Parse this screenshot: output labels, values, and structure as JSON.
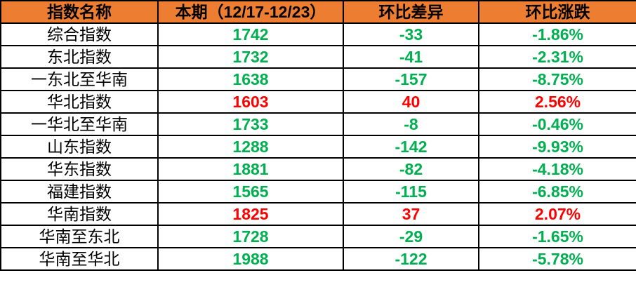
{
  "colors": {
    "header_bg": "#ED7D31",
    "down": "#00B050",
    "up": "#FF0000"
  },
  "headers": [
    "指数名称",
    "本期（12/17-12/23）",
    "环比差异",
    "环比涨跌"
  ],
  "rows": [
    {
      "name": "综合指数",
      "value": "1742",
      "diff": "-33",
      "pct": "-1.86%",
      "dir": "down"
    },
    {
      "name": "东北指数",
      "value": "1732",
      "diff": "-41",
      "pct": "-2.31%",
      "dir": "down"
    },
    {
      "name": "一东北至华南",
      "value": "1638",
      "diff": "-157",
      "pct": "-8.75%",
      "dir": "down"
    },
    {
      "name": "华北指数",
      "value": "1603",
      "diff": "40",
      "pct": "2.56%",
      "dir": "up"
    },
    {
      "name": "一华北至华南",
      "value": "1733",
      "diff": "-8",
      "pct": "-0.46%",
      "dir": "down"
    },
    {
      "name": "山东指数",
      "value": "1288",
      "diff": "-142",
      "pct": "-9.93%",
      "dir": "down"
    },
    {
      "name": "华东指数",
      "value": "1881",
      "diff": "-82",
      "pct": "-4.18%",
      "dir": "down"
    },
    {
      "name": "福建指数",
      "value": "1565",
      "diff": "-115",
      "pct": "-6.85%",
      "dir": "down"
    },
    {
      "name": "华南指数",
      "value": "1825",
      "diff": "37",
      "pct": "2.07%",
      "dir": "up"
    },
    {
      "name": "华南至东北",
      "value": "1728",
      "diff": "-29",
      "pct": "-1.65%",
      "dir": "down"
    },
    {
      "name": "华南至华北",
      "value": "1988",
      "diff": "-122",
      "pct": "-5.78%",
      "dir": "down"
    }
  ]
}
